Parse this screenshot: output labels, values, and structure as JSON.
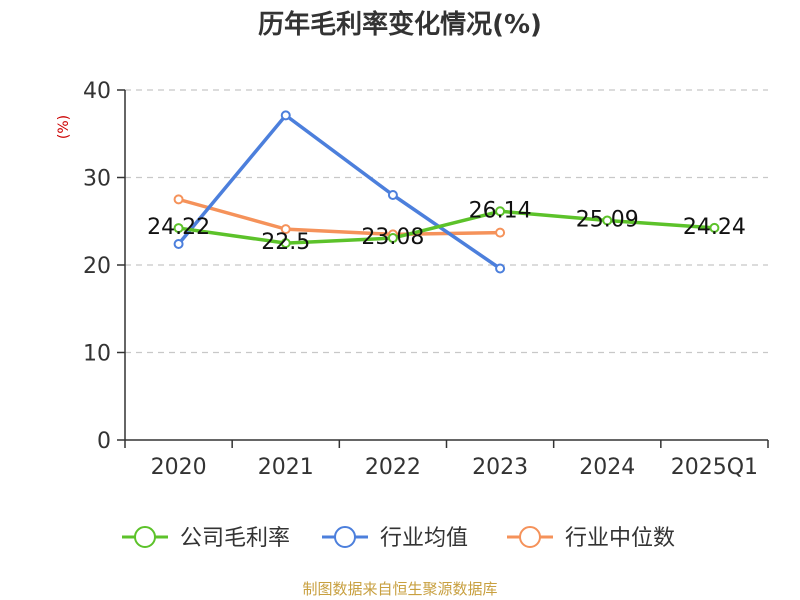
{
  "chart_data": {
    "type": "line",
    "title": "历年毛利率变化情况(%)",
    "ylabel": "(%)",
    "categories": [
      "2020",
      "2021",
      "2022",
      "2023",
      "2024",
      "2025Q1"
    ],
    "ylim": [
      0,
      40
    ],
    "yticks": [
      0,
      10,
      20,
      30,
      40
    ],
    "grid": true,
    "legend_position": "bottom",
    "series": [
      {
        "name": "公司毛利率",
        "color": "#5cc22a",
        "values": [
          24.22,
          22.5,
          23.08,
          26.14,
          25.09,
          24.24
        ],
        "show_labels": true
      },
      {
        "name": "行业均值",
        "color": "#4c7fdc",
        "values": [
          22.4,
          37.1,
          28.0,
          19.6,
          null,
          null
        ],
        "show_labels": false
      },
      {
        "name": "行业中位数",
        "color": "#f5925a",
        "values": [
          27.5,
          24.1,
          23.5,
          23.7,
          null,
          null
        ],
        "show_labels": false
      }
    ],
    "source": "制图数据来自恒生聚源数据库"
  }
}
